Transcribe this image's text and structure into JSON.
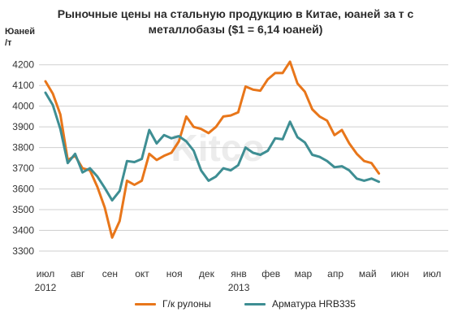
{
  "title_line1": "Рыночные цены на стальную продукцию в Китае, юаней за т с",
  "title_line2": "металлобазы ($1 = 6,14 юаней)",
  "unit_line1": "Юаней",
  "unit_line2": "/т",
  "watermark": "Kitco",
  "chart_data": {
    "type": "line",
    "title": "Рыночные цены на стальную продукцию в Китае, юаней за т с металлобазы ($1 = 6,14 юаней)",
    "ylabel": "Юаней /т",
    "ylim": [
      3300,
      4250
    ],
    "yticks": [
      3300,
      3400,
      3500,
      3600,
      3700,
      3800,
      3900,
      4000,
      4100,
      4200
    ],
    "grid": true,
    "legend": "bottom",
    "xtick_labels": [
      {
        "label": "июл",
        "year": "2012",
        "month": 0
      },
      {
        "label": "авг",
        "month": 1
      },
      {
        "label": "сен",
        "month": 2
      },
      {
        "label": "окт",
        "month": 3
      },
      {
        "label": "ноя",
        "month": 4
      },
      {
        "label": "дек",
        "month": 5
      },
      {
        "label": "янв",
        "year": "2013",
        "month": 6
      },
      {
        "label": "фев",
        "month": 7
      },
      {
        "label": "мар",
        "month": 8
      },
      {
        "label": "апр",
        "month": 9
      },
      {
        "label": "май",
        "month": 10
      },
      {
        "label": "июн",
        "month": 11
      },
      {
        "label": "июл",
        "month": 12
      }
    ],
    "x": [
      0,
      0.23,
      0.46,
      0.69,
      0.92,
      1.15,
      1.38,
      1.61,
      1.84,
      2.07,
      2.3,
      2.53,
      2.76,
      2.99,
      3.22,
      3.45,
      3.68,
      3.91,
      4.14,
      4.37,
      4.6,
      4.83,
      5.06,
      5.29,
      5.52,
      5.75,
      5.98,
      6.21,
      6.44,
      6.67,
      6.9,
      7.13,
      7.36,
      7.59,
      7.82,
      8.05,
      8.28,
      8.51,
      8.74,
      8.97,
      9.2,
      9.43,
      9.66,
      9.89,
      10.12,
      10.35
    ],
    "series": [
      {
        "name": "Г/к рулоны",
        "color": "#E8761A",
        "values": [
          4120,
          4060,
          3960,
          3740,
          3760,
          3700,
          3690,
          3610,
          3510,
          3365,
          3445,
          3640,
          3620,
          3640,
          3770,
          3740,
          3760,
          3775,
          3830,
          3950,
          3900,
          3890,
          3870,
          3900,
          3950,
          3955,
          3970,
          4095,
          4080,
          4075,
          4130,
          4160,
          4160,
          4215,
          4110,
          4070,
          3985,
          3950,
          3930,
          3860,
          3885,
          3820,
          3770,
          3735,
          3725,
          3675
        ]
      },
      {
        "name": "Арматура HRB335",
        "color": "#3E8E93",
        "values": [
          4065,
          4005,
          3890,
          3725,
          3770,
          3680,
          3700,
          3660,
          3605,
          3545,
          3590,
          3735,
          3730,
          3745,
          3885,
          3820,
          3860,
          3845,
          3855,
          3830,
          3785,
          3690,
          3640,
          3660,
          3700,
          3690,
          3715,
          3800,
          3775,
          3765,
          3785,
          3845,
          3840,
          3925,
          3850,
          3825,
          3765,
          3755,
          3735,
          3705,
          3710,
          3690,
          3650,
          3640,
          3650,
          3635
        ]
      }
    ]
  }
}
